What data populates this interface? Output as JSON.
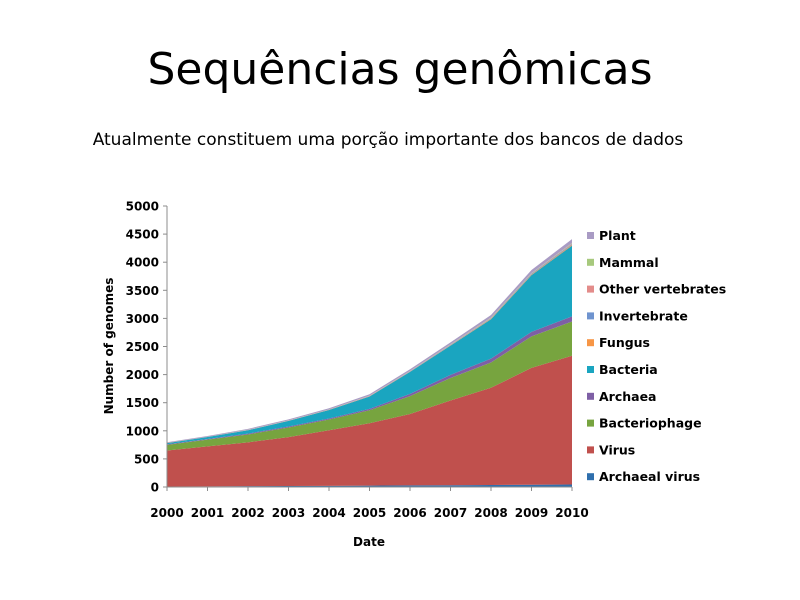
{
  "slide": {
    "title": "Sequências genômicas",
    "subtitle": "Atualmente constituem uma porção importante dos bancos de dados"
  },
  "chart_data": {
    "type": "area",
    "stacked": true,
    "x": [
      "2000",
      "2001",
      "2002",
      "2003",
      "2004",
      "2005",
      "2006",
      "2007",
      "2008",
      "2009",
      "2010"
    ],
    "xlabel": "Date",
    "ylabel": "Number of genomes",
    "ylim": [
      0,
      5000
    ],
    "yticks": [
      0,
      500,
      1000,
      1500,
      2000,
      2500,
      3000,
      3500,
      4000,
      4500,
      5000
    ],
    "grid": false,
    "legend_position": "right",
    "series": [
      {
        "name": "Archaeal virus",
        "color": "#2f6fad",
        "values": [
          10,
          12,
          15,
          18,
          20,
          25,
          28,
          30,
          35,
          40,
          45
        ]
      },
      {
        "name": "Virus",
        "color": "#c0504d",
        "values": [
          640,
          710,
          780,
          870,
          990,
          1110,
          1270,
          1510,
          1730,
          2080,
          2290
        ]
      },
      {
        "name": "Bacteriophage",
        "color": "#77a43f",
        "values": [
          100,
          120,
          140,
          170,
          190,
          230,
          320,
          400,
          450,
          560,
          610
        ]
      },
      {
        "name": "Archaea",
        "color": "#7e5fa5",
        "values": [
          10,
          12,
          15,
          18,
          20,
          25,
          40,
          55,
          70,
          80,
          90
        ]
      },
      {
        "name": "Bacteria",
        "color": "#1aa5c0",
        "values": [
          20,
          35,
          60,
          100,
          150,
          220,
          390,
          520,
          700,
          1010,
          1260
        ]
      },
      {
        "name": "Fungus",
        "color": "#f79646",
        "values": [
          2,
          2,
          3,
          3,
          4,
          5,
          6,
          8,
          10,
          12,
          15
        ]
      },
      {
        "name": "Invertebrate",
        "color": "#6f94cf",
        "values": [
          2,
          2,
          3,
          3,
          4,
          5,
          6,
          8,
          10,
          12,
          15
        ]
      },
      {
        "name": "Other vertebrates",
        "color": "#e38c8a",
        "values": [
          1,
          1,
          2,
          2,
          2,
          3,
          3,
          4,
          5,
          6,
          8
        ]
      },
      {
        "name": "Mammal",
        "color": "#a7c97d",
        "values": [
          1,
          1,
          2,
          2,
          2,
          3,
          3,
          4,
          5,
          6,
          8
        ]
      },
      {
        "name": "Plant",
        "color": "#a99bc4",
        "values": [
          10,
          12,
          15,
          18,
          20,
          25,
          30,
          35,
          45,
          55,
          70
        ]
      }
    ]
  }
}
